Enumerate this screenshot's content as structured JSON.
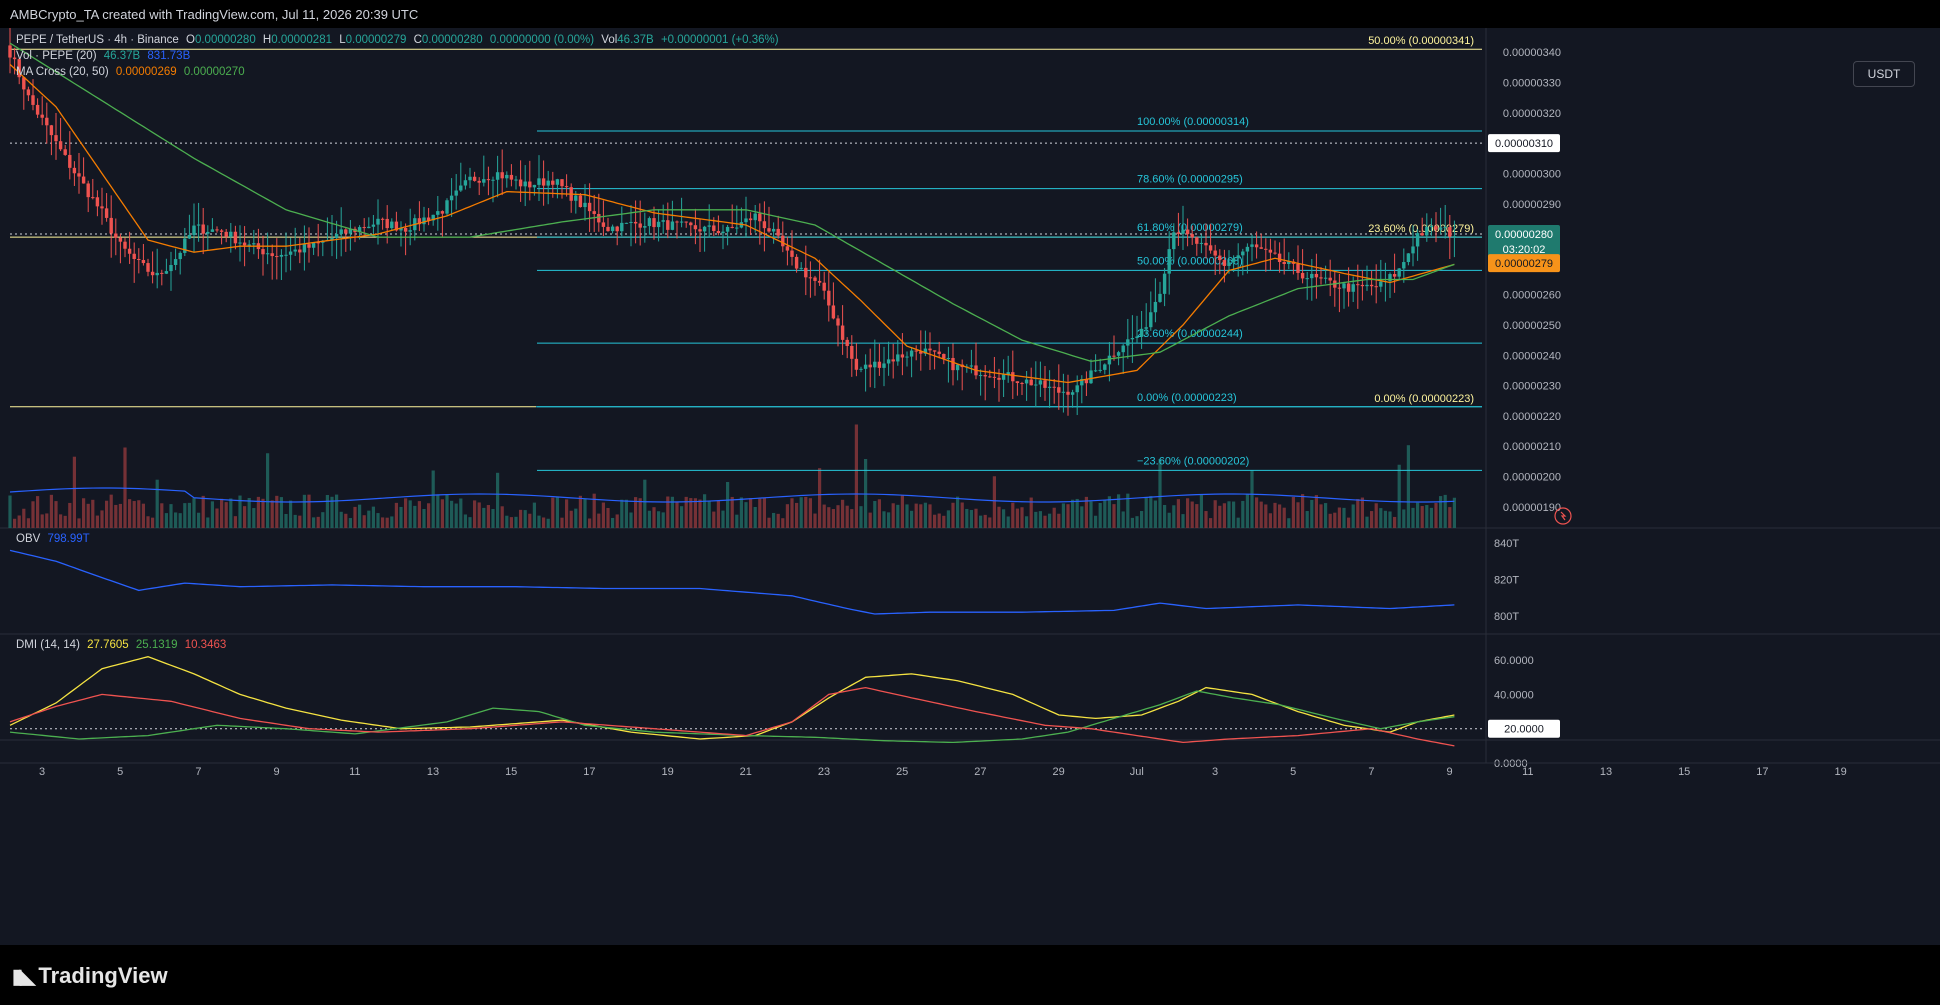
{
  "header": {
    "credit": "AMBCrypto_TA created with TradingView.com, Jul 11, 2026 20:39 UTC",
    "currency_button": "USDT"
  },
  "legend": {
    "symbol": "PEPE / TetherUS · 4h · Binance",
    "o_label": "O",
    "o": "0.00000280",
    "h_label": "H",
    "h": "0.00000281",
    "l_label": "L",
    "l": "0.00000279",
    "c_label": "C",
    "c": "0.00000280",
    "change": "0.00000000 (0.00%)",
    "vol_label": "Vol",
    "vol": "46.37B",
    "vol_change": "+0.00000001 (+0.36%)",
    "vol_ind": "Vol · PEPE (20)",
    "vol_ind_v1": "46.37B",
    "vol_ind_v2": "831.73B",
    "ma_ind": "MA Cross (20, 50)",
    "ma_v1": "0.00000269",
    "ma_v2": "0.00000270"
  },
  "obv": {
    "label": "OBV",
    "value": "798.99T"
  },
  "dmi": {
    "label": "DMI (14, 14)",
    "adx": "27.7605",
    "plus_di": "25.1319",
    "minus_di": "10.3463"
  },
  "colors": {
    "up": "#26a69a",
    "down": "#ef5350",
    "fib": "#26c6da",
    "ma_fast": "#f57c00",
    "ma_slow": "#4caf50",
    "obv": "#2962ff",
    "adx": "#f5e342",
    "highlight": "#fff59d",
    "accent_orange": "#f7931a"
  },
  "fib_left": {
    "levels": [
      {
        "label": "50.00% (0.00000341)",
        "price": 3.41e-06
      },
      {
        "label": "23.60% (0.00000279)",
        "price": 2.79e-06
      },
      {
        "label": "0.00% (0.00000223)",
        "price": 2.23e-06
      }
    ]
  },
  "fib_right": {
    "levels": [
      {
        "label": "100.00% (0.00000314)",
        "price": 3.14e-06
      },
      {
        "label": "78.60% (0.00000295)",
        "price": 2.95e-06
      },
      {
        "label": "61.80% (0.00000279)",
        "price": 2.79e-06
      },
      {
        "label": "50.00% (0.00000268)",
        "price": 2.68e-06
      },
      {
        "label": "23.60% (0.00000244)",
        "price": 2.44e-06
      },
      {
        "label": "0.00% (0.00000223)",
        "price": 2.23e-06
      },
      {
        "label": "−23.60% (0.00000202)",
        "price": 2.02e-06
      }
    ]
  },
  "price_badges": {
    "dotted_level": "0.00000310",
    "last": "0.00000280",
    "countdown": "03:20:02",
    "ma": "0.00000279",
    "dmi_level": "20.0000"
  },
  "chart_data": {
    "type": "candlestick",
    "timeframe": "4h",
    "y_ticks": [
      "0.00000340",
      "0.00000330",
      "0.00000320",
      "0.00000300",
      "0.00000290",
      "0.00000260",
      "0.00000250",
      "0.00000240",
      "0.00000230",
      "0.00000220",
      "0.00000210",
      "0.00000200",
      "0.00000190"
    ],
    "ylim": [
      1.83e-06,
      3.48e-06
    ],
    "x_ticks": [
      "3",
      "5",
      "7",
      "9",
      "11",
      "13",
      "15",
      "17",
      "19",
      "21",
      "23",
      "25",
      "27",
      "29",
      "Jul",
      "3",
      "5",
      "7",
      "9",
      "11",
      "13",
      "15",
      "17",
      "19"
    ],
    "obv_ticks": [
      "840T",
      "820T",
      "800T"
    ],
    "dmi_ticks": [
      "60.0000",
      "40.0000",
      "0.0000"
    ],
    "close_waypoints": [
      [
        0,
        3.4e-06
      ],
      [
        4,
        3.25e-06
      ],
      [
        8,
        3.15e-06
      ],
      [
        12,
        3.05e-06
      ],
      [
        16,
        2.96e-06
      ],
      [
        20,
        2.87e-06
      ],
      [
        24,
        2.76e-06
      ],
      [
        28,
        2.7e-06
      ],
      [
        32,
        2.66e-06
      ],
      [
        36,
        2.72e-06
      ],
      [
        40,
        2.82e-06
      ],
      [
        46,
        2.81e-06
      ],
      [
        52,
        2.76e-06
      ],
      [
        58,
        2.73e-06
      ],
      [
        66,
        2.76e-06
      ],
      [
        72,
        2.8e-06
      ],
      [
        80,
        2.84e-06
      ],
      [
        86,
        2.82e-06
      ],
      [
        94,
        2.88e-06
      ],
      [
        100,
        2.98e-06
      ],
      [
        106,
        3e-06
      ],
      [
        112,
        2.96e-06
      ],
      [
        118,
        2.98e-06
      ],
      [
        124,
        2.9e-06
      ],
      [
        130,
        2.82e-06
      ],
      [
        138,
        2.84e-06
      ],
      [
        148,
        2.82e-06
      ],
      [
        156,
        2.81e-06
      ],
      [
        162,
        2.86e-06
      ],
      [
        166,
        2.8e-06
      ],
      [
        170,
        2.71e-06
      ],
      [
        176,
        2.63e-06
      ],
      [
        180,
        2.5e-06
      ],
      [
        184,
        2.35e-06
      ],
      [
        190,
        2.38e-06
      ],
      [
        198,
        2.42e-06
      ],
      [
        206,
        2.36e-06
      ],
      [
        214,
        2.34e-06
      ],
      [
        222,
        2.31e-06
      ],
      [
        228,
        2.28e-06
      ],
      [
        232,
        2.29e-06
      ],
      [
        236,
        2.35e-06
      ],
      [
        242,
        2.44e-06
      ],
      [
        246,
        2.47e-06
      ],
      [
        250,
        2.62e-06
      ],
      [
        253,
        2.82e-06
      ],
      [
        258,
        2.77e-06
      ],
      [
        264,
        2.7e-06
      ],
      [
        270,
        2.76e-06
      ],
      [
        276,
        2.71e-06
      ],
      [
        282,
        2.66e-06
      ],
      [
        286,
        2.64e-06
      ],
      [
        292,
        2.62e-06
      ],
      [
        298,
        2.63e-06
      ],
      [
        302,
        2.68e-06
      ],
      [
        306,
        2.8e-06
      ],
      [
        310,
        2.82e-06
      ],
      [
        314,
        2.8e-06
      ]
    ],
    "ma20_waypoints": [
      [
        0,
        3.36e-06
      ],
      [
        10,
        3.22e-06
      ],
      [
        20,
        3e-06
      ],
      [
        30,
        2.78e-06
      ],
      [
        40,
        2.74e-06
      ],
      [
        50,
        2.76e-06
      ],
      [
        60,
        2.76e-06
      ],
      [
        80,
        2.8e-06
      ],
      [
        95,
        2.86e-06
      ],
      [
        108,
        2.94e-06
      ],
      [
        125,
        2.93e-06
      ],
      [
        140,
        2.87e-06
      ],
      [
        160,
        2.83e-06
      ],
      [
        175,
        2.72e-06
      ],
      [
        185,
        2.58e-06
      ],
      [
        195,
        2.43e-06
      ],
      [
        210,
        2.35e-06
      ],
      [
        230,
        2.31e-06
      ],
      [
        245,
        2.35e-06
      ],
      [
        255,
        2.5e-06
      ],
      [
        265,
        2.68e-06
      ],
      [
        275,
        2.72e-06
      ],
      [
        290,
        2.67e-06
      ],
      [
        300,
        2.64e-06
      ],
      [
        314,
        2.7e-06
      ]
    ],
    "ma50_waypoints": [
      [
        0,
        3.43e-06
      ],
      [
        20,
        3.24e-06
      ],
      [
        40,
        3.05e-06
      ],
      [
        60,
        2.88e-06
      ],
      [
        80,
        2.79e-06
      ],
      [
        100,
        2.79e-06
      ],
      [
        120,
        2.84e-06
      ],
      [
        140,
        2.88e-06
      ],
      [
        160,
        2.88e-06
      ],
      [
        175,
        2.83e-06
      ],
      [
        190,
        2.7e-06
      ],
      [
        205,
        2.57e-06
      ],
      [
        220,
        2.45e-06
      ],
      [
        235,
        2.38e-06
      ],
      [
        250,
        2.41e-06
      ],
      [
        265,
        2.53e-06
      ],
      [
        280,
        2.62e-06
      ],
      [
        295,
        2.65e-06
      ],
      [
        305,
        2.65e-06
      ],
      [
        314,
        2.7e-06
      ]
    ],
    "volume_spikes": [
      [
        14,
        0.62
      ],
      [
        25,
        0.7
      ],
      [
        32,
        0.42
      ],
      [
        56,
        0.65
      ],
      [
        92,
        0.5
      ],
      [
        106,
        0.48
      ],
      [
        138,
        0.42
      ],
      [
        156,
        0.4
      ],
      [
        176,
        0.52
      ],
      [
        184,
        0.9
      ],
      [
        186,
        0.6
      ],
      [
        214,
        0.45
      ],
      [
        250,
        0.6
      ],
      [
        270,
        0.5
      ],
      [
        302,
        0.55
      ],
      [
        304,
        0.72
      ]
    ],
    "obv_waypoints": [
      [
        0,
        836
      ],
      [
        10,
        830
      ],
      [
        20,
        821
      ],
      [
        28,
        814
      ],
      [
        38,
        818
      ],
      [
        50,
        816
      ],
      [
        70,
        817
      ],
      [
        90,
        816
      ],
      [
        110,
        816
      ],
      [
        130,
        815
      ],
      [
        150,
        815
      ],
      [
        170,
        811
      ],
      [
        182,
        804
      ],
      [
        188,
        801
      ],
      [
        200,
        802
      ],
      [
        220,
        802
      ],
      [
        240,
        803
      ],
      [
        250,
        807
      ],
      [
        260,
        804
      ],
      [
        280,
        806
      ],
      [
        300,
        804
      ],
      [
        314,
        806
      ]
    ],
    "adx_waypoints": [
      [
        0,
        22
      ],
      [
        10,
        35
      ],
      [
        20,
        55
      ],
      [
        30,
        62
      ],
      [
        40,
        52
      ],
      [
        50,
        40
      ],
      [
        60,
        32
      ],
      [
        72,
        25
      ],
      [
        85,
        20
      ],
      [
        100,
        21
      ],
      [
        120,
        25
      ],
      [
        135,
        18
      ],
      [
        150,
        14
      ],
      [
        162,
        16
      ],
      [
        170,
        24
      ],
      [
        178,
        38
      ],
      [
        186,
        50
      ],
      [
        196,
        52
      ],
      [
        206,
        48
      ],
      [
        218,
        40
      ],
      [
        228,
        28
      ],
      [
        236,
        26
      ],
      [
        246,
        28
      ],
      [
        254,
        36
      ],
      [
        260,
        44
      ],
      [
        270,
        40
      ],
      [
        280,
        30
      ],
      [
        290,
        22
      ],
      [
        300,
        18
      ],
      [
        306,
        24
      ],
      [
        314,
        28
      ]
    ],
    "pdi_waypoints": [
      [
        0,
        18
      ],
      [
        15,
        14
      ],
      [
        30,
        16
      ],
      [
        45,
        22
      ],
      [
        60,
        20
      ],
      [
        75,
        17
      ],
      [
        95,
        24
      ],
      [
        105,
        32
      ],
      [
        115,
        30
      ],
      [
        125,
        22
      ],
      [
        140,
        18
      ],
      [
        160,
        16
      ],
      [
        175,
        15
      ],
      [
        190,
        13
      ],
      [
        205,
        12
      ],
      [
        220,
        14
      ],
      [
        230,
        18
      ],
      [
        240,
        26
      ],
      [
        250,
        34
      ],
      [
        258,
        42
      ],
      [
        266,
        38
      ],
      [
        276,
        34
      ],
      [
        288,
        26
      ],
      [
        298,
        20
      ],
      [
        306,
        24
      ],
      [
        314,
        27
      ]
    ],
    "mdi_waypoints": [
      [
        0,
        24
      ],
      [
        10,
        33
      ],
      [
        20,
        40
      ],
      [
        35,
        36
      ],
      [
        50,
        26
      ],
      [
        65,
        20
      ],
      [
        80,
        18
      ],
      [
        100,
        20
      ],
      [
        120,
        24
      ],
      [
        140,
        20
      ],
      [
        160,
        16
      ],
      [
        170,
        24
      ],
      [
        178,
        40
      ],
      [
        186,
        44
      ],
      [
        196,
        38
      ],
      [
        210,
        30
      ],
      [
        225,
        22
      ],
      [
        235,
        20
      ],
      [
        245,
        16
      ],
      [
        255,
        12
      ],
      [
        265,
        14
      ],
      [
        280,
        16
      ],
      [
        296,
        20
      ],
      [
        306,
        14
      ],
      [
        314,
        10
      ]
    ]
  }
}
